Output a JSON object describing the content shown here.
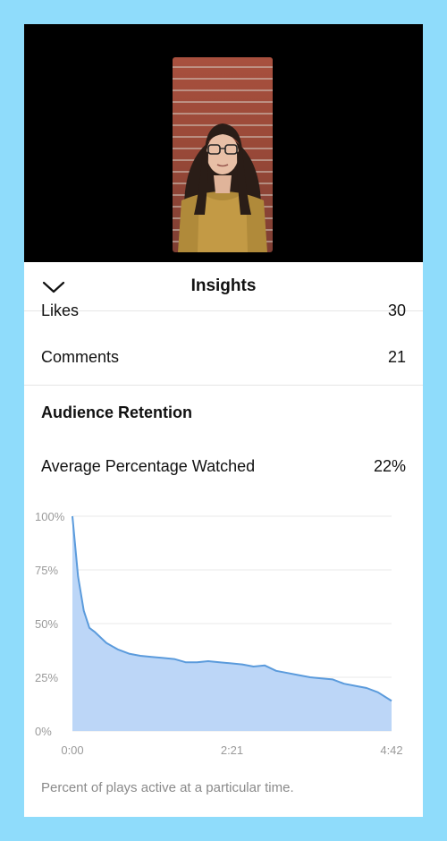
{
  "header": {
    "title": "Insights"
  },
  "metrics": [
    {
      "label": "Likes",
      "value": "30"
    },
    {
      "label": "Comments",
      "value": "21"
    }
  ],
  "retention": {
    "section_title": "Audience Retention",
    "avg_label": "Average Percentage Watched",
    "avg_value": "22%",
    "caption": "Percent of plays active at a particular time."
  },
  "colors": {
    "line": "#5b9bdc",
    "fill": "#bcd6f7",
    "background": "#8fdcfb"
  },
  "chart_data": {
    "type": "area",
    "title": "",
    "xlabel": "",
    "ylabel": "",
    "x_ticks": [
      "0:00",
      "2:21",
      "4:42"
    ],
    "y_ticks": [
      "0%",
      "25%",
      "50%",
      "75%",
      "100%"
    ],
    "xlim": [
      0,
      282
    ],
    "ylim": [
      0,
      100
    ],
    "grid": true,
    "series": [
      {
        "x": [
          0,
          5,
          10,
          15,
          20,
          30,
          40,
          50,
          60,
          70,
          80,
          90,
          100,
          110,
          120,
          130,
          140,
          150,
          160,
          170,
          180,
          190,
          200,
          210,
          220,
          230,
          240,
          250,
          260,
          270,
          282
        ],
        "y": [
          100,
          72,
          56,
          48,
          46,
          41,
          38,
          36,
          35,
          34.5,
          34,
          33.5,
          32,
          32,
          32.5,
          32,
          31.5,
          31,
          30,
          30.5,
          28,
          27,
          26,
          25,
          24.5,
          24,
          22,
          21,
          20,
          18,
          14
        ]
      }
    ]
  }
}
